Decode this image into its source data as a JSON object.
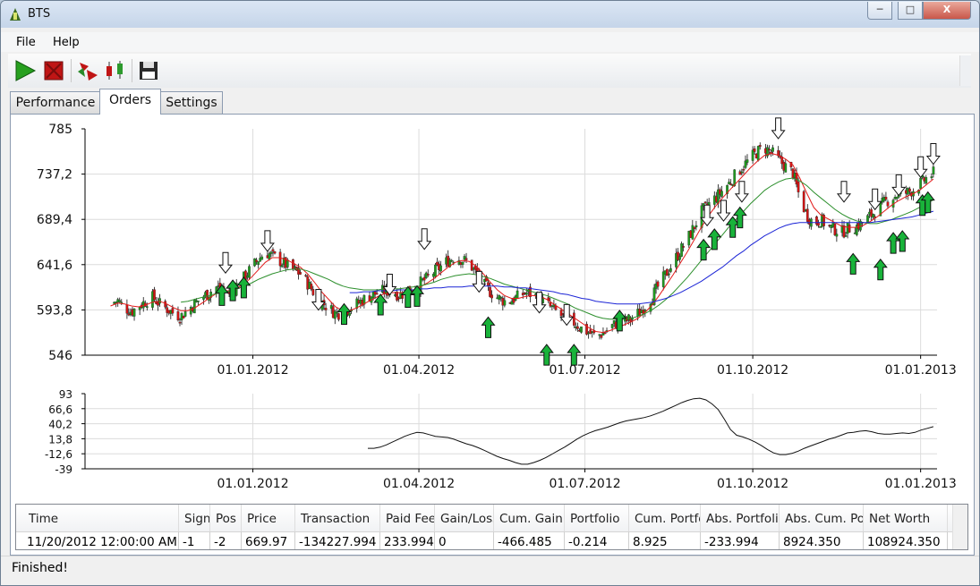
{
  "window": {
    "title": "BTS",
    "controls": {
      "minimize": "─",
      "maximize": "□",
      "close": "X"
    }
  },
  "menu": [
    "File",
    "Help"
  ],
  "toolbar": {
    "buttons": [
      {
        "name": "play-icon",
        "color": "#27a01f"
      },
      {
        "name": "stop-icon",
        "color": "#c01515"
      },
      {
        "name": "signal-arrows-icon",
        "color": "#c01515"
      },
      {
        "name": "candlestick-icon",
        "color": "#2d9a2d"
      },
      {
        "name": "save-icon",
        "color": "#2a2a2a"
      }
    ]
  },
  "tabs": [
    {
      "label": "Performance",
      "active": false
    },
    {
      "label": "Orders",
      "active": true
    },
    {
      "label": "Settings",
      "active": false
    }
  ],
  "chart_data": [
    {
      "type": "candlestick",
      "title": "",
      "ylim": [
        546,
        785
      ],
      "y_ticks": [
        "785",
        "737,2",
        "689,4",
        "641,6",
        "593,8",
        "546"
      ],
      "x_ticks": [
        "01.01.2012",
        "01.04.2012",
        "01.07.2012",
        "01.10.2012",
        "01.01.2013"
      ],
      "grid": true,
      "series": [
        {
          "name": "",
          "kind": "close",
          "x_start": "2011-10-15",
          "x_end": "2013-01-08",
          "values": [
            600,
            604,
            596,
            592,
            598,
            603,
            607,
            600,
            595,
            590,
            587,
            594,
            601,
            607,
            612,
            618,
            615,
            611,
            621,
            628,
            638,
            647,
            655,
            651,
            646,
            641,
            636,
            632,
            622,
            611,
            602,
            596,
            590,
            591,
            596,
            600,
            605,
            609,
            612,
            614,
            613,
            610,
            612,
            618,
            622,
            627,
            634,
            640,
            646,
            650,
            647,
            643,
            632,
            621,
            613,
            607,
            603,
            604,
            608,
            612,
            610,
            606,
            600,
            594,
            588,
            584,
            580,
            574,
            570,
            566,
            569,
            575,
            580,
            582,
            584,
            590,
            598,
            608,
            620,
            632,
            644,
            656,
            668,
            682,
            697,
            705,
            712,
            720,
            728,
            738,
            746,
            754,
            761,
            765,
            760,
            752,
            745,
            739,
            712,
            694,
            685,
            689,
            682,
            679,
            676,
            680,
            682,
            686,
            693,
            700,
            707,
            712,
            716,
            717,
            720,
            726,
            733,
            738
          ]
        },
        {
          "name": "",
          "kind": "sma-short",
          "color": "#e21b1b",
          "values": [
            598,
            601,
            600,
            598,
            597,
            599,
            602,
            603,
            600,
            596,
            593,
            593,
            596,
            601,
            606,
            611,
            614,
            614,
            617,
            621,
            628,
            636,
            644,
            649,
            649,
            647,
            643,
            639,
            632,
            623,
            613,
            605,
            597,
            593,
            593,
            596,
            600,
            604,
            608,
            611,
            612,
            612,
            612,
            614,
            618,
            622,
            627,
            633,
            639,
            644,
            646,
            645,
            640,
            632,
            623,
            615,
            609,
            606,
            606,
            608,
            609,
            608,
            605,
            600,
            595,
            590,
            585,
            580,
            575,
            571,
            570,
            572,
            575,
            578,
            581,
            585,
            591,
            599,
            609,
            620,
            631,
            643,
            655,
            668,
            681,
            693,
            703,
            712,
            720,
            728,
            736,
            744,
            751,
            757,
            759,
            757,
            753,
            747,
            733,
            717,
            702,
            694,
            690,
            686,
            682,
            681,
            681,
            683,
            687,
            692,
            698,
            704,
            709,
            713,
            716,
            720,
            726,
            732
          ]
        },
        {
          "name": "",
          "kind": "sma-mid",
          "color": "#2c8f2c",
          "values": [
            null,
            null,
            null,
            null,
            null,
            null,
            null,
            null,
            null,
            null,
            602,
            603,
            605,
            607,
            609,
            611,
            612,
            614,
            616,
            619,
            622,
            626,
            629,
            632,
            634,
            636,
            637,
            637,
            635,
            632,
            629,
            626,
            622,
            619,
            617,
            616,
            615,
            615,
            615,
            616,
            616,
            616,
            617,
            618,
            619,
            621,
            623,
            626,
            628,
            630,
            631,
            632,
            631,
            629,
            627,
            624,
            621,
            619,
            617,
            615,
            613,
            611,
            609,
            606,
            603,
            600,
            596,
            593,
            590,
            587,
            585,
            584,
            584,
            584,
            585,
            587,
            590,
            594,
            599,
            605,
            612,
            620,
            628,
            637,
            646,
            655,
            664,
            673,
            682,
            690,
            698,
            706,
            713,
            720,
            725,
            729,
            732,
            733,
            730,
            725,
            718,
            712,
            706,
            700,
            695,
            691,
            688,
            686,
            685,
            685,
            687,
            689,
            692,
            695,
            698,
            702,
            706,
            710
          ]
        },
        {
          "name": "",
          "kind": "sma-long",
          "color": "#1c25d6",
          "values": [
            null,
            null,
            null,
            null,
            null,
            null,
            null,
            null,
            null,
            null,
            null,
            null,
            null,
            null,
            null,
            null,
            null,
            null,
            null,
            null,
            null,
            null,
            null,
            null,
            null,
            null,
            null,
            null,
            null,
            null,
            null,
            null,
            null,
            null,
            612,
            612,
            613,
            613,
            614,
            614,
            614,
            615,
            615,
            615,
            616,
            616,
            617,
            617,
            618,
            618,
            618,
            619,
            619,
            619,
            619,
            619,
            618,
            618,
            617,
            617,
            616,
            615,
            614,
            613,
            611,
            610,
            608,
            606,
            605,
            603,
            602,
            601,
            600,
            600,
            600,
            600,
            601,
            602,
            604,
            606,
            609,
            612,
            616,
            620,
            624,
            629,
            634,
            639,
            645,
            651,
            656,
            662,
            667,
            672,
            676,
            680,
            683,
            685,
            686,
            686,
            686,
            686,
            686,
            686,
            686,
            686,
            686,
            686,
            686,
            687,
            688,
            689,
            690,
            691,
            692,
            694,
            696,
            698
          ]
        }
      ],
      "signals": [
        {
          "date": "2011-12-15",
          "direction": "long",
          "value": 608
        },
        {
          "date": "2011-12-21",
          "direction": "long",
          "value": 613
        },
        {
          "date": "2011-12-27",
          "direction": "long",
          "value": 616
        },
        {
          "date": "2011-12-17",
          "direction": "short",
          "value": 645
        },
        {
          "date": "2012-01-09",
          "direction": "short",
          "value": 668
        },
        {
          "date": "2012-02-06",
          "direction": "short",
          "value": 606
        },
        {
          "date": "2012-02-20",
          "direction": "long",
          "value": 588
        },
        {
          "date": "2012-03-11",
          "direction": "long",
          "value": 598
        },
        {
          "date": "2012-03-16",
          "direction": "short",
          "value": 622
        },
        {
          "date": "2012-03-26",
          "direction": "long",
          "value": 606
        },
        {
          "date": "2012-03-31",
          "direction": "long",
          "value": 607
        },
        {
          "date": "2012-04-04",
          "direction": "short",
          "value": 670
        },
        {
          "date": "2012-05-04",
          "direction": "short",
          "value": 625
        },
        {
          "date": "2012-05-09",
          "direction": "long",
          "value": 574
        },
        {
          "date": "2012-06-06",
          "direction": "short",
          "value": 603
        },
        {
          "date": "2012-06-10",
          "direction": "long",
          "value": 545
        },
        {
          "date": "2012-06-21",
          "direction": "short",
          "value": 590
        },
        {
          "date": "2012-06-25",
          "direction": "long",
          "value": 545
        },
        {
          "date": "2012-07-20",
          "direction": "long",
          "value": 581
        },
        {
          "date": "2012-09-04",
          "direction": "long",
          "value": 656
        },
        {
          "date": "2012-09-06",
          "direction": "short",
          "value": 695
        },
        {
          "date": "2012-09-10",
          "direction": "long",
          "value": 667
        },
        {
          "date": "2012-09-15",
          "direction": "short",
          "value": 700
        },
        {
          "date": "2012-09-20",
          "direction": "long",
          "value": 680
        },
        {
          "date": "2012-09-24",
          "direction": "long",
          "value": 690
        },
        {
          "date": "2012-09-25",
          "direction": "short",
          "value": 720
        },
        {
          "date": "2012-10-15",
          "direction": "short",
          "value": 787
        },
        {
          "date": "2012-11-20",
          "direction": "short",
          "value": 720
        },
        {
          "date": "2012-11-25",
          "direction": "long",
          "value": 641
        },
        {
          "date": "2012-12-07",
          "direction": "short",
          "value": 712
        },
        {
          "date": "2012-12-10",
          "direction": "long",
          "value": 635
        },
        {
          "date": "2012-12-17",
          "direction": "long",
          "value": 663
        },
        {
          "date": "2012-12-20",
          "direction": "short",
          "value": 727
        },
        {
          "date": "2012-12-22",
          "direction": "long",
          "value": 665
        },
        {
          "date": "2013-01-01",
          "direction": "short",
          "value": 746
        },
        {
          "date": "2013-01-02",
          "direction": "long",
          "value": 703
        },
        {
          "date": "2013-01-05",
          "direction": "long",
          "value": 706
        },
        {
          "date": "2013-01-08",
          "direction": "short",
          "value": 760
        }
      ]
    },
    {
      "type": "line",
      "title": "",
      "ylim": [
        -39,
        93
      ],
      "y_ticks": [
        "93",
        "66,6",
        "40,2",
        "13,8",
        "-12,6",
        "-39"
      ],
      "x_ticks": [
        "01.01.2012",
        "01.04.2012",
        "01.07.2012",
        "01.10.2012",
        "01.01.2013"
      ],
      "grid": true,
      "series": [
        {
          "name": "",
          "x_start": "2012-03-04",
          "x_end": "2013-01-08",
          "values": [
            -3,
            -3,
            -1,
            3,
            8,
            13,
            18,
            22,
            25,
            24,
            21,
            18,
            17,
            16,
            13,
            9,
            5,
            2,
            -2,
            -7,
            -12,
            -17,
            -21,
            -24,
            -28,
            -31,
            -31,
            -28,
            -24,
            -19,
            -13,
            -7,
            -1,
            6,
            13,
            19,
            24,
            28,
            31,
            34,
            38,
            42,
            45,
            47,
            49,
            51,
            54,
            58,
            62,
            67,
            72,
            77,
            81,
            84,
            85,
            82,
            75,
            65,
            48,
            30,
            20,
            17,
            13,
            8,
            2,
            -5,
            -11,
            -14,
            -14,
            -12,
            -8,
            -3,
            1,
            5,
            9,
            13,
            16,
            20,
            24,
            25,
            27,
            28,
            26,
            23,
            22,
            22,
            23,
            24,
            23,
            25,
            29,
            32,
            35
          ]
        }
      ]
    }
  ],
  "orders_table": {
    "columns": [
      "Time",
      "Sign",
      "Pos",
      "Price",
      "Transaction",
      "Paid Fee",
      "Gain/Loss",
      "Cum. Gain",
      "Portfolio",
      "Cum. Portfolio",
      "Abs. Portfolio",
      "Abs. Cum. Portfolio",
      "Net Worth"
    ],
    "rows": [
      [
        "11/20/2012 12:00:00 AM",
        "-1",
        "-2",
        "669.97",
        "-134227.994",
        "233.994",
        "0",
        "-466.485",
        "-0.214",
        "8.925",
        "-233.994",
        "8924.350",
        "108924.350"
      ]
    ]
  },
  "status": "Finished!"
}
